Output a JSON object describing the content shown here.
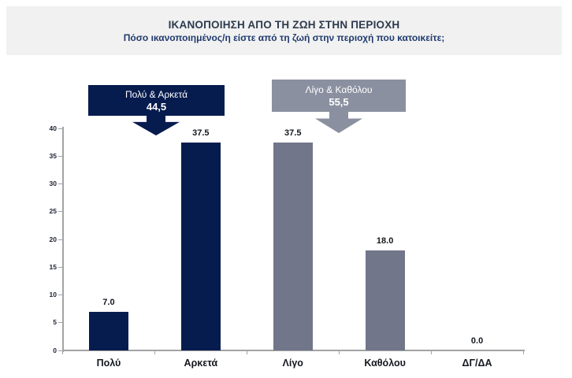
{
  "header": {
    "title": "ΙΚΑΝΟΠΟΙΗΣΗ ΑΠΟ ΤΗ ΖΩΗ ΣΤΗΝ ΠΕΡΙΟΧΗ",
    "subtitle": "Πόσο ικανοποιημένος/η είστε από τη ζωή στην περιοχή που κατοικείτε;"
  },
  "callouts": [
    {
      "id": "very-quite",
      "label": "Πολύ & Αρκετά",
      "value": "44,5"
    },
    {
      "id": "little-notatall",
      "label": "Λίγο & Καθόλου",
      "value": "55,5"
    }
  ],
  "colors": {
    "navy": "#071c4e",
    "gray_bar": "#71768a",
    "gray_box": "#8b90a0",
    "axis": "#a3a3a3",
    "tick_label": "#1a2233",
    "data_label": "#14181f",
    "title": "#2d3a4e",
    "subtitle": "#1f3a6e",
    "header_bg": "#f1f1f1"
  },
  "chart_data": {
    "type": "bar",
    "title": "ΙΚΑΝΟΠΟΙΗΣΗ ΑΠΟ ΤΗ ΖΩΗ ΣΤΗΝ ΠΕΡΙΟΧΗ",
    "subtitle": "Πόσο ικανοποιημένος/η είστε από τη ζωή στην περιοχή που κατοικείτε;",
    "categories": [
      "Πολύ",
      "Αρκετά",
      "Λίγο",
      "Καθόλου",
      "ΔΓ/ΔΑ"
    ],
    "slugs": [
      "very",
      "quite",
      "little",
      "not-at-all",
      "dk-na"
    ],
    "values": [
      7.0,
      37.5,
      37.5,
      18.0,
      0.0
    ],
    "value_labels": [
      "7.0",
      "37.5",
      "37.5",
      "18.0",
      "0.0"
    ],
    "bar_colors": [
      "navy",
      "navy",
      "gray_bar",
      "gray_bar",
      "gray_bar"
    ],
    "aggregates": [
      {
        "label": "Πολύ & Αρκετά",
        "value": 44.5
      },
      {
        "label": "Λίγο & Καθόλου",
        "value": 55.5
      }
    ],
    "xlabel": "",
    "ylabel": "",
    "ylim": [
      0,
      40
    ],
    "yticks": [
      0,
      5,
      10,
      15,
      20,
      25,
      30,
      35,
      40
    ],
    "grid": false,
    "legend": "none"
  }
}
